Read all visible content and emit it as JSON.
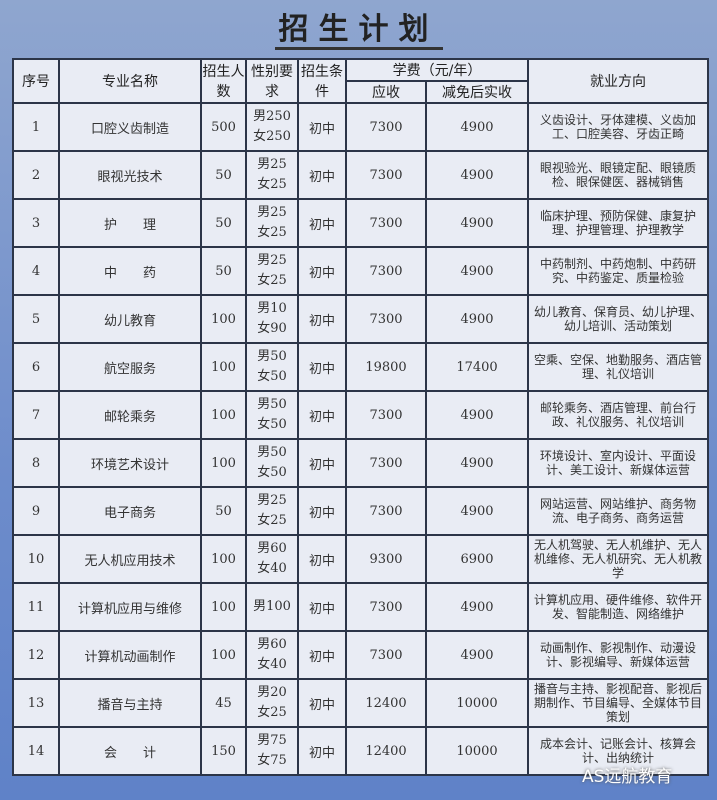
{
  "title": "招生计划",
  "headers": {
    "no": "序号",
    "major": "专业名称",
    "count": "招生人数",
    "gender": "性别要求",
    "cond": "招生条件",
    "fee": "学费（元/年）",
    "fee_due": "应收",
    "fee_actual": "减免后实收",
    "job": "就业方向"
  },
  "rows": [
    {
      "no": "1",
      "major": "口腔义齿制造",
      "count": "500",
      "gender": [
        "男250",
        "女250"
      ],
      "cond": "初中",
      "due": "7300",
      "actual": "4900",
      "job": "义齿设计、牙体建模、义齿加工、口腔美容、牙齿正畸"
    },
    {
      "no": "2",
      "major": "眼视光技术",
      "count": "50",
      "gender": [
        "男25",
        "女25"
      ],
      "cond": "初中",
      "due": "7300",
      "actual": "4900",
      "job": "眼视验光、眼镜定配、眼镜质检、眼保健医、器械销售"
    },
    {
      "no": "3",
      "major": "护　　理",
      "count": "50",
      "gender": [
        "男25",
        "女25"
      ],
      "cond": "初中",
      "due": "7300",
      "actual": "4900",
      "job": "临床护理、预防保健、康复护理、护理管理、护理教学"
    },
    {
      "no": "4",
      "major": "中　　药",
      "count": "50",
      "gender": [
        "男25",
        "女25"
      ],
      "cond": "初中",
      "due": "7300",
      "actual": "4900",
      "job": "中药制剂、中药炮制、中药研究、中药鉴定、质量检验"
    },
    {
      "no": "5",
      "major": "幼儿教育",
      "count": "100",
      "gender": [
        "男10",
        "女90"
      ],
      "cond": "初中",
      "due": "7300",
      "actual": "4900",
      "job": "幼儿教育、保育员、幼儿护理、幼儿培训、活动策划"
    },
    {
      "no": "6",
      "major": "航空服务",
      "count": "100",
      "gender": [
        "男50",
        "女50"
      ],
      "cond": "初中",
      "due": "19800",
      "actual": "17400",
      "job": "空乘、空保、地勤服务、酒店管理、礼仪培训"
    },
    {
      "no": "7",
      "major": "邮轮乘务",
      "count": "100",
      "gender": [
        "男50",
        "女50"
      ],
      "cond": "初中",
      "due": "7300",
      "actual": "4900",
      "job": "邮轮乘务、酒店管理、前台行政、礼仪服务、礼仪培训"
    },
    {
      "no": "8",
      "major": "环境艺术设计",
      "count": "100",
      "gender": [
        "男50",
        "女50"
      ],
      "cond": "初中",
      "due": "7300",
      "actual": "4900",
      "job": "环境设计、室内设计、平面设计、美工设计、新媒体运营"
    },
    {
      "no": "9",
      "major": "电子商务",
      "count": "50",
      "gender": [
        "男25",
        "女25"
      ],
      "cond": "初中",
      "due": "7300",
      "actual": "4900",
      "job": "网站运营、网站维护、商务物流、电子商务、商务运营"
    },
    {
      "no": "10",
      "major": "无人机应用技术",
      "count": "100",
      "gender": [
        "男60",
        "女40"
      ],
      "cond": "初中",
      "due": "9300",
      "actual": "6900",
      "job": "无人机驾驶、无人机维护、无人机维修、无人机研究、无人机教学"
    },
    {
      "no": "11",
      "major": "计算机应用与维修",
      "count": "100",
      "gender": [
        "男100"
      ],
      "cond": "初中",
      "due": "7300",
      "actual": "4900",
      "job": "计算机应用、硬件维修、软件开发、智能制造、网络维护"
    },
    {
      "no": "12",
      "major": "计算机动画制作",
      "count": "100",
      "gender": [
        "男60",
        "女40"
      ],
      "cond": "初中",
      "due": "7300",
      "actual": "4900",
      "job": "动画制作、影视制作、动漫设计、影视编导、新媒体运营"
    },
    {
      "no": "13",
      "major": "播音与主持",
      "count": "45",
      "gender": [
        "男20",
        "女25"
      ],
      "cond": "初中",
      "due": "12400",
      "actual": "10000",
      "job": "播音与主持、影视配音、影视后期制作、节目编导、全媒体节目策划"
    },
    {
      "no": "14",
      "major": "会　　计",
      "count": "150",
      "gender": [
        "男75",
        "女75"
      ],
      "cond": "初中",
      "due": "12400",
      "actual": "10000",
      "job": "成本会计、记账会计、核算会计、出纳统计"
    }
  ],
  "watermark": "AS远航教育"
}
